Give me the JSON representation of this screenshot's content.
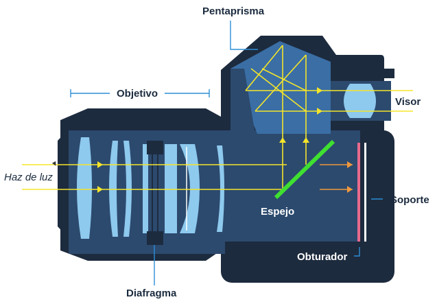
{
  "labels": {
    "pentaprisma": "Pentaprisma",
    "objetivo": "Objetivo",
    "visor": "Visor",
    "haz_de_luz": "Haz de luz",
    "espejo": "Espejo",
    "soporte": "Soporte",
    "obturador": "Obturador",
    "diafragma": "Diafragma"
  },
  "colors": {
    "body_dark": "#1d2b3e",
    "body_mid": "#2c4a6e",
    "lens_light": "#8ec9ee",
    "prism_blue": "#3a6ea5",
    "ray_yellow": "#f5e52a",
    "ray_orange": "#f0983c",
    "mirror_green": "#3fe030",
    "shutter_pink": "#e86a8c",
    "sensor_white": "#ffffff",
    "leader_blue": "#2d8ed6"
  }
}
